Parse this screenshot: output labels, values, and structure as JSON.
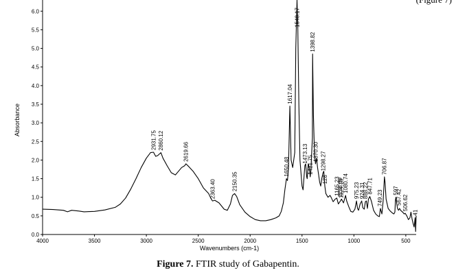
{
  "corner_fragment": "(Figure 7)",
  "caption": {
    "label": "Figure 7.",
    "text": "FTIR study of Gabapentin."
  },
  "chart_data": {
    "type": "line",
    "title": "",
    "xlabel": "Wavenumbers (cm-1)",
    "ylabel": "Absorbance",
    "xlim": [
      4000,
      400
    ],
    "ylim": [
      0,
      6.3
    ],
    "x_ticks": [
      4000,
      3500,
      3000,
      2500,
      2000,
      1500,
      1000,
      500
    ],
    "y_ticks": [
      0.0,
      0.5,
      1.0,
      1.5,
      2.0,
      2.5,
      3.0,
      3.5,
      4.0,
      4.5,
      5.0,
      5.5,
      6.0
    ],
    "y_tick_labels": [
      "0.0",
      "0.5",
      "1.0",
      "1.5",
      "2.0",
      "2.5",
      "3.0",
      "3.5",
      "4.0",
      "4.5",
      "5.0",
      "5.5",
      "6.0"
    ],
    "grid": false,
    "series": [
      {
        "color": "#000000",
        "points": [
          [
            4000,
            0.68
          ],
          [
            3900,
            0.67
          ],
          [
            3800,
            0.65
          ],
          [
            3760,
            0.61
          ],
          [
            3720,
            0.65
          ],
          [
            3650,
            0.63
          ],
          [
            3600,
            0.61
          ],
          [
            3500,
            0.62
          ],
          [
            3400,
            0.66
          ],
          [
            3300,
            0.73
          ],
          [
            3250,
            0.82
          ],
          [
            3200,
            0.98
          ],
          [
            3150,
            1.22
          ],
          [
            3100,
            1.5
          ],
          [
            3050,
            1.8
          ],
          [
            3000,
            2.05
          ],
          [
            2960,
            2.2
          ],
          [
            2931,
            2.21
          ],
          [
            2910,
            2.1
          ],
          [
            2890,
            2.12
          ],
          [
            2860,
            2.2
          ],
          [
            2840,
            2.05
          ],
          [
            2800,
            1.85
          ],
          [
            2760,
            1.66
          ],
          [
            2720,
            1.6
          ],
          [
            2690,
            1.7
          ],
          [
            2660,
            1.8
          ],
          [
            2630,
            1.85
          ],
          [
            2619,
            1.9
          ],
          [
            2590,
            1.82
          ],
          [
            2550,
            1.7
          ],
          [
            2500,
            1.5
          ],
          [
            2450,
            1.25
          ],
          [
            2400,
            1.1
          ],
          [
            2380,
            0.98
          ],
          [
            2363,
            0.9
          ],
          [
            2340,
            0.92
          ],
          [
            2300,
            0.85
          ],
          [
            2250,
            0.68
          ],
          [
            2220,
            0.65
          ],
          [
            2190,
            0.82
          ],
          [
            2170,
            1.05
          ],
          [
            2150,
            1.1
          ],
          [
            2130,
            1.02
          ],
          [
            2100,
            0.8
          ],
          [
            2050,
            0.6
          ],
          [
            2000,
            0.48
          ],
          [
            1950,
            0.4
          ],
          [
            1900,
            0.37
          ],
          [
            1850,
            0.37
          ],
          [
            1800,
            0.4
          ],
          [
            1750,
            0.45
          ],
          [
            1720,
            0.5
          ],
          [
            1700,
            0.62
          ],
          [
            1680,
            0.85
          ],
          [
            1665,
            1.2
          ],
          [
            1650,
            1.5
          ],
          [
            1640,
            1.45
          ],
          [
            1630,
            1.8
          ],
          [
            1617,
            3.45
          ],
          [
            1605,
            2.0
          ],
          [
            1590,
            1.8
          ],
          [
            1570,
            2.2
          ],
          [
            1560,
            5.0
          ],
          [
            1548,
            6.3
          ],
          [
            1540,
            5.5
          ],
          [
            1530,
            3.5
          ],
          [
            1520,
            2.0
          ],
          [
            1500,
            1.3
          ],
          [
            1490,
            1.2
          ],
          [
            1473,
            1.85
          ],
          [
            1465,
            1.9
          ],
          [
            1455,
            1.55
          ],
          [
            1450,
            1.5
          ],
          [
            1440,
            1.9
          ],
          [
            1430,
            1.8
          ],
          [
            1421,
            1.55
          ],
          [
            1415,
            1.7
          ],
          [
            1400,
            2.6
          ],
          [
            1398,
            4.85
          ],
          [
            1390,
            3.2
          ],
          [
            1380,
            2.2
          ],
          [
            1370,
            1.9
          ],
          [
            1360,
            2.05
          ],
          [
            1350,
            1.8
          ],
          [
            1340,
            1.6
          ],
          [
            1330,
            1.4
          ],
          [
            1320,
            1.3
          ],
          [
            1310,
            1.5
          ],
          [
            1298,
            1.65
          ],
          [
            1290,
            1.7
          ],
          [
            1280,
            1.3
          ],
          [
            1270,
            1.1
          ],
          [
            1250,
            1.0
          ],
          [
            1230,
            1.05
          ],
          [
            1220,
            1.0
          ],
          [
            1200,
            0.88
          ],
          [
            1180,
            0.95
          ],
          [
            1165,
            0.98
          ],
          [
            1150,
            0.82
          ],
          [
            1130,
            0.9
          ],
          [
            1120,
            0.95
          ],
          [
            1100,
            0.85
          ],
          [
            1080,
            1.05
          ],
          [
            1070,
            0.9
          ],
          [
            1050,
            0.75
          ],
          [
            1030,
            0.62
          ],
          [
            1010,
            0.6
          ],
          [
            990,
            0.68
          ],
          [
            975,
            0.9
          ],
          [
            965,
            0.7
          ],
          [
            955,
            0.65
          ],
          [
            940,
            0.82
          ],
          [
            925,
            0.9
          ],
          [
            915,
            0.72
          ],
          [
            900,
            0.68
          ],
          [
            890,
            0.88
          ],
          [
            880,
            0.9
          ],
          [
            870,
            0.7
          ],
          [
            860,
            0.95
          ],
          [
            847,
            1.02
          ],
          [
            830,
            0.88
          ],
          [
            810,
            0.65
          ],
          [
            790,
            0.55
          ],
          [
            770,
            0.5
          ],
          [
            755,
            0.48
          ],
          [
            745,
            0.7
          ],
          [
            730,
            0.55
          ],
          [
            718,
            0.9
          ],
          [
            706,
            1.55
          ],
          [
            700,
            1.4
          ],
          [
            690,
            0.95
          ],
          [
            670,
            0.7
          ],
          [
            650,
            0.63
          ],
          [
            630,
            0.58
          ],
          [
            615,
            0.55
          ],
          [
            605,
            0.6
          ],
          [
            600,
            0.92
          ],
          [
            595,
            1.0
          ],
          [
            590,
            0.88
          ],
          [
            580,
            0.7
          ],
          [
            570,
            0.65
          ],
          [
            560,
            0.7
          ],
          [
            550,
            0.65
          ],
          [
            530,
            0.6
          ],
          [
            515,
            0.55
          ],
          [
            506,
            0.57
          ],
          [
            490,
            0.5
          ],
          [
            475,
            0.4
          ],
          [
            460,
            0.45
          ],
          [
            450,
            0.6
          ],
          [
            440,
            0.42
          ],
          [
            430,
            0.3
          ],
          [
            420,
            0.2
          ],
          [
            410,
            0.45
          ],
          [
            405,
            0.08
          ],
          [
            400,
            0.5
          ]
        ]
      }
    ],
    "peak_labels": [
      {
        "x": 2931.75,
        "y": 2.21,
        "text": "2931.75"
      },
      {
        "x": 2860.12,
        "y": 2.2,
        "text": "2860.12"
      },
      {
        "x": 2619.66,
        "y": 1.9,
        "text": "2619.66"
      },
      {
        "x": 2363.4,
        "y": 0.9,
        "text": "2363.40"
      },
      {
        "x": 2150.35,
        "y": 1.1,
        "text": "2150.35"
      },
      {
        "x": 1650.48,
        "y": 1.5,
        "text": "1650.48"
      },
      {
        "x": 1617.04,
        "y": 3.45,
        "text": "1617.04"
      },
      {
        "x": 1548.17,
        "y": 6.3,
        "text": "1548.17"
      },
      {
        "x": 1473.13,
        "y": 1.85,
        "text": "1473.13"
      },
      {
        "x": 1421.75,
        "y": 1.55,
        "text": "1421.75"
      },
      {
        "x": 1398.82,
        "y": 4.85,
        "text": "1398.82"
      },
      {
        "x": 1370.3,
        "y": 1.9,
        "text": "1370.30"
      },
      {
        "x": 1298.27,
        "y": 1.65,
        "text": "1298.27"
      },
      {
        "x": 1280.0,
        "y": 1.3,
        "text": "128"
      },
      {
        "x": 1165.23,
        "y": 0.98,
        "text": "1165.23"
      },
      {
        "x": 1133.89,
        "y": 0.95,
        "text": "1133.89"
      },
      {
        "x": 1124.18,
        "y": 0.92,
        "text": "1124.18"
      },
      {
        "x": 1080.74,
        "y": 1.05,
        "text": "1080.74"
      },
      {
        "x": 975.23,
        "y": 0.9,
        "text": "975.23"
      },
      {
        "x": 924.31,
        "y": 0.9,
        "text": "924.31"
      },
      {
        "x": 888.22,
        "y": 0.9,
        "text": "888.22"
      },
      {
        "x": 847.71,
        "y": 1.02,
        "text": "847.71"
      },
      {
        "x": 749.23,
        "y": 0.7,
        "text": "749.23"
      },
      {
        "x": 706.87,
        "y": 1.55,
        "text": "706.87"
      },
      {
        "x": 597.0,
        "y": 1.0,
        "text": "597"
      },
      {
        "x": 567.42,
        "y": 0.72,
        "text": "567.42"
      },
      {
        "x": 506.62,
        "y": 0.57,
        "text": "506.62"
      },
      {
        "x": 410.0,
        "y": 0.45,
        "text": "41"
      }
    ]
  }
}
